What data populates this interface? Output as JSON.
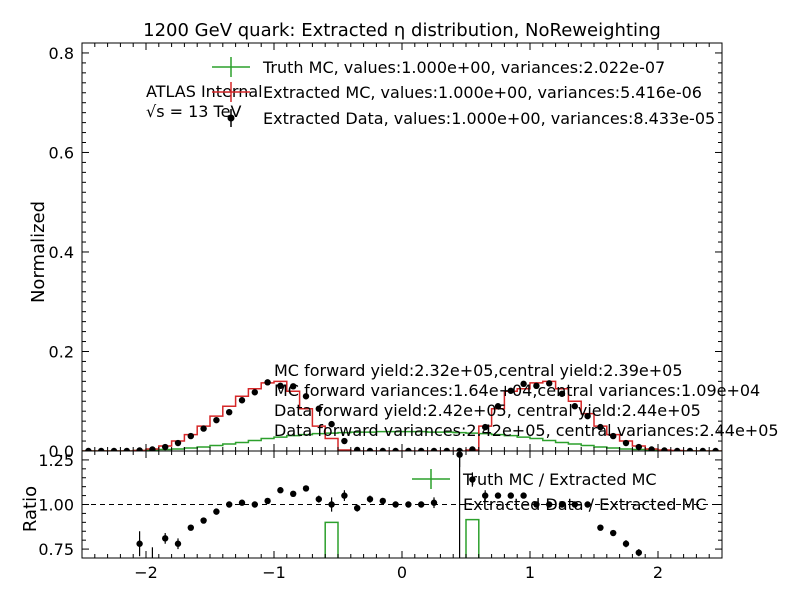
{
  "title": "1200 GeV quark: Extracted η distribution, NoReweighting",
  "colors": {
    "truth": "#2ca02c",
    "mc": "#d62728",
    "data": "#000000"
  },
  "labels": {
    "atlas": "ATLAS Internal",
    "energy_sqrt": "√s",
    "energy_rest": " =  13 TeV"
  },
  "legend_top": [
    {
      "label": "Truth MC, values:1.000e+00, variances:2.022e-07"
    },
    {
      "label": "Extracted MC, values:1.000e+00, variances:5.416e-06"
    },
    {
      "label": "Extracted Data, values:1.000e+00, variances:8.433e-05"
    }
  ],
  "yield_text": [
    "MC forward yield:2.32e+05,central yield:2.39e+05",
    "MC forward variances:1.64e+04,central variances:1.09e+04",
    "Data forward yield:2.42e+05, central yield:2.44e+05",
    "Data forward variances:2.42e+05, central variances:2.44e+05"
  ],
  "legend_ratio": [
    {
      "label": "Truth MC / Extracted MC"
    },
    {
      "label": "Extracted Data / Extracted MC"
    }
  ],
  "chart_data": [
    {
      "type": "line",
      "panel": "main",
      "xlim": [
        -2.5,
        2.5
      ],
      "ylim": [
        0,
        0.82
      ],
      "ylabel": "Normalized",
      "yticks": [
        "0.0",
        "0.2",
        "0.4",
        "0.6",
        "0.8"
      ],
      "bin_edges": [
        -2.5,
        -2.4,
        -2.3,
        -2.2,
        -2.1,
        -2.0,
        -1.9,
        -1.8,
        -1.7,
        -1.6,
        -1.5,
        -1.4,
        -1.3,
        -1.2,
        -1.1,
        -1.0,
        -0.9,
        -0.8,
        -0.7,
        -0.6,
        -0.5,
        -0.4,
        -0.3,
        -0.2,
        -0.1,
        0.0,
        0.1,
        0.2,
        0.3,
        0.4,
        0.5,
        0.6,
        0.7,
        0.8,
        0.9,
        1.0,
        1.1,
        1.2,
        1.3,
        1.4,
        1.5,
        1.6,
        1.7,
        1.8,
        1.9,
        2.0,
        2.1,
        2.2,
        2.3,
        2.4,
        2.5
      ],
      "series": [
        {
          "name": "Truth MC",
          "style": "step",
          "values": [
            0,
            0,
            0,
            0,
            0.001,
            0.002,
            0.003,
            0.004,
            0.006,
            0.008,
            0.011,
            0.014,
            0.017,
            0.021,
            0.025,
            0.028,
            0.031,
            0.033,
            0.035,
            0.036,
            0.037,
            0.038,
            0.038,
            0.039,
            0.039,
            0.039,
            0.039,
            0.038,
            0.038,
            0.037,
            0.036,
            0.035,
            0.033,
            0.031,
            0.028,
            0.025,
            0.021,
            0.017,
            0.014,
            0.011,
            0.008,
            0.006,
            0.004,
            0.003,
            0.002,
            0.001,
            0,
            0,
            0,
            0
          ]
        },
        {
          "name": "Extracted MC",
          "style": "step",
          "values": [
            0,
            0,
            0,
            0,
            0.001,
            0.004,
            0.01,
            0.02,
            0.033,
            0.05,
            0.07,
            0.09,
            0.11,
            0.125,
            0.137,
            0.14,
            0.12,
            0.085,
            0.05,
            0.025,
            0.002,
            0,
            0,
            0,
            0,
            0,
            0,
            0,
            0,
            0,
            0.002,
            0.05,
            0.085,
            0.12,
            0.125,
            0.137,
            0.14,
            0.125,
            0.1,
            0.075,
            0.05,
            0.033,
            0.02,
            0.01,
            0.004,
            0.002,
            0.001,
            0,
            0,
            0
          ]
        },
        {
          "name": "Extracted Data",
          "style": "points",
          "values": [
            0,
            0,
            0,
            0,
            0.001,
            0.003,
            0.008,
            0.016,
            0.03,
            0.045,
            0.062,
            0.078,
            0.102,
            0.118,
            0.138,
            0.131,
            0.13,
            0.11,
            0.085,
            0.054,
            0.02,
            0.002,
            0,
            0,
            0,
            0,
            0,
            0,
            0,
            0,
            0.003,
            0.048,
            0.09,
            0.121,
            0.135,
            0.131,
            0.136,
            0.115,
            0.09,
            0.07,
            0.048,
            0.03,
            0.016,
            0.008,
            0.003,
            0.001,
            0,
            0,
            0,
            0
          ]
        }
      ]
    },
    {
      "type": "line",
      "panel": "ratio",
      "xlim": [
        -2.5,
        2.5
      ],
      "ylim": [
        0.7,
        1.3
      ],
      "ylabel": "Ratio",
      "xticks": [
        "−2",
        "−1",
        "0",
        "1",
        "2"
      ],
      "yticks": [
        "0.75",
        "1.00",
        "1.25"
      ],
      "reference_line": 1.0,
      "series": [
        {
          "name": "Truth MC / Extracted MC",
          "style": "step",
          "bins": [
            [
              -0.6,
              -0.5,
              0.9
            ],
            [
              0.5,
              0.6,
              0.915
            ]
          ]
        },
        {
          "name": "Extracted Data / Extracted MC",
          "style": "points",
          "x": [
            -2.05,
            -1.95,
            -1.85,
            -1.75,
            -1.65,
            -1.55,
            -1.45,
            -1.35,
            -1.25,
            -1.15,
            -1.05,
            -0.95,
            -0.85,
            -0.75,
            -0.65,
            -0.55,
            -0.45,
            -0.35,
            -0.25,
            -0.15,
            -0.05,
            0.05,
            0.15,
            0.25,
            0.45,
            0.55,
            0.65,
            0.75,
            0.85,
            0.95,
            1.05,
            1.15,
            1.25,
            1.35,
            1.45,
            1.55,
            1.65,
            1.75,
            1.85
          ],
          "y": [
            0.78,
            0.68,
            0.81,
            0.78,
            0.87,
            0.91,
            0.96,
            1.0,
            1.01,
            1.0,
            1.02,
            1.08,
            1.06,
            1.09,
            1.03,
            1.0,
            1.05,
            0.98,
            1.03,
            1.02,
            1.0,
            1.0,
            1.0,
            1.01,
            1.28,
            1.14,
            1.05,
            1.05,
            1.05,
            1.05,
            1.0,
            1.0,
            1.0,
            1.0,
            1.0,
            0.87,
            0.84,
            0.78,
            0.73
          ],
          "err": [
            0.07,
            0.08,
            0.03,
            0.03,
            0.01,
            0.01,
            0.01,
            0.01,
            0.01,
            0.01,
            0.01,
            0.01,
            0.01,
            0.01,
            0.02,
            0.04,
            0.03,
            0.02,
            0.02,
            0.01,
            0.01,
            0.01,
            0.01,
            0.03,
            0.07,
            0.04,
            0.03,
            0.01,
            0.01,
            0.01,
            0.01,
            0.01,
            0.01,
            0.01,
            0.01,
            0.01,
            0.01,
            0.02,
            0.02
          ]
        }
      ]
    }
  ]
}
